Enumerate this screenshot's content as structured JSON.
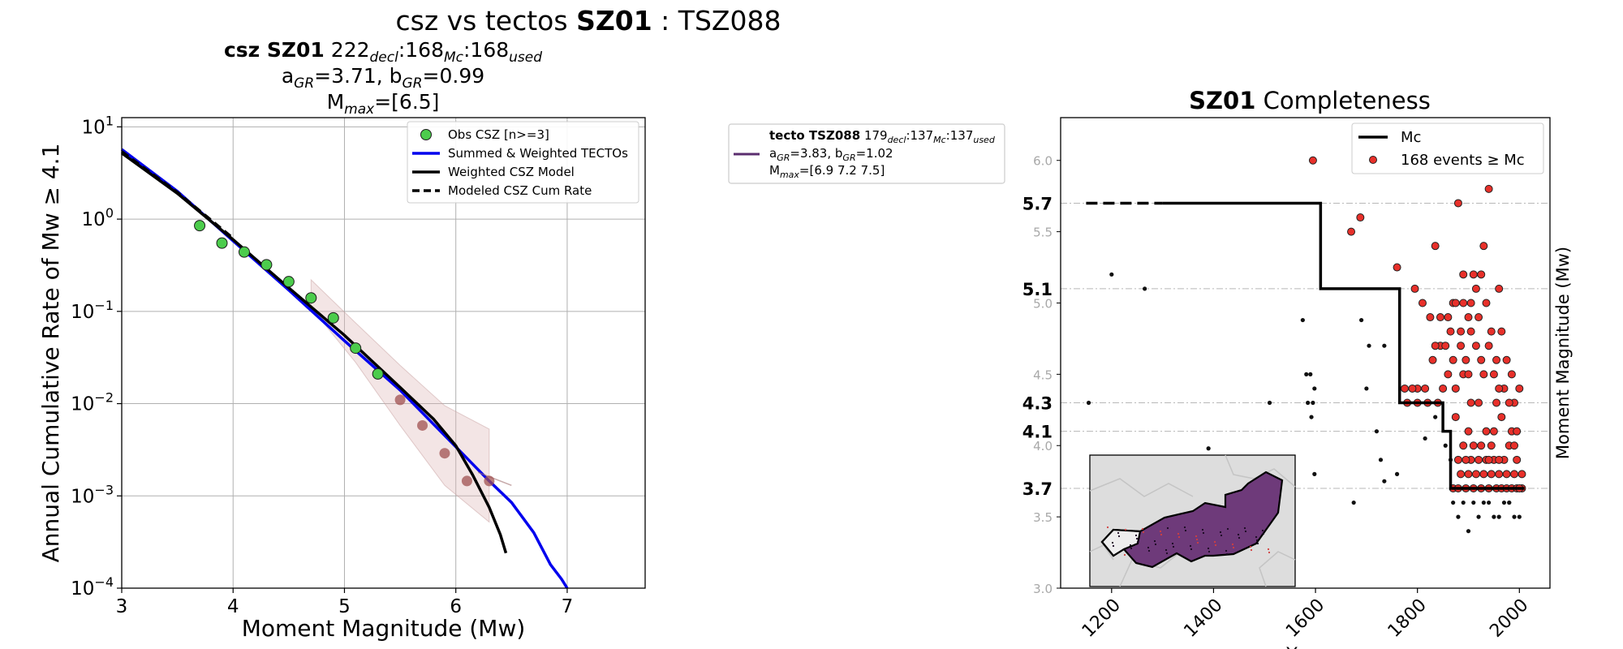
{
  "suptitle": {
    "pre": "csz vs tectos ",
    "zone": "SZ01",
    "post": " : TSZ088"
  },
  "left_title": {
    "zone_label": "csz SZ01",
    "counts": [
      "222",
      "decl",
      ":168",
      "Mc",
      ":168",
      "used"
    ],
    "a_gr": "3.71",
    "b_gr": "0.99",
    "mmax": "[6.5]"
  },
  "tecto_legend": {
    "name": "tecto TSZ088",
    "counts": [
      "179",
      "decl",
      ":137",
      "Mc",
      ":137",
      "used"
    ],
    "a_gr": "3.83",
    "b_gr": "1.02",
    "mmax": "[6.9 7.2 7.5]",
    "color": "#5a2d6e"
  },
  "chart_data": [
    {
      "type": "line",
      "xlabel": "Moment Magnitude (Mw)",
      "ylabel": "Annual Cumulative Rate of Mw  ≥  4.1",
      "xlim": [
        3,
        7.7
      ],
      "ylim_log10": [
        -4,
        1.1
      ],
      "log_y": true,
      "grid": true,
      "legend_position": "top-right",
      "x_ticks": [
        3,
        4,
        5,
        6,
        7
      ],
      "y_ticks": [
        {
          "base": "10",
          "exp": "1"
        },
        {
          "base": "10",
          "exp": "0"
        },
        {
          "base": "10",
          "exp": "−1"
        },
        {
          "base": "10",
          "exp": "−2"
        },
        {
          "base": "10",
          "exp": "−3"
        },
        {
          "base": "10",
          "exp": "−4"
        }
      ],
      "series": [
        {
          "name": "Obs CSZ [n>=3]",
          "kind": "scatter",
          "color": "#4ccc4c",
          "x": [
            3.7,
            3.9,
            4.1,
            4.3,
            4.5,
            4.7,
            4.9,
            5.1,
            5.3
          ],
          "y": [
            0.85,
            0.55,
            0.44,
            0.32,
            0.21,
            0.14,
            0.085,
            0.04,
            0.021
          ]
        },
        {
          "name": "",
          "kind": "scatter",
          "color": "#a05050",
          "x": [
            5.5,
            5.7,
            5.9,
            6.1,
            6.3
          ],
          "y": [
            0.011,
            0.0058,
            0.0029,
            0.00145,
            0.00145
          ]
        },
        {
          "name": "Summed & Weighted TECTOs",
          "kind": "line",
          "color": "#0000ee",
          "x": [
            3.0,
            3.5,
            4.0,
            4.5,
            5.0,
            5.5,
            6.0,
            6.3,
            6.5,
            6.7,
            6.85,
            6.95,
            7.0
          ],
          "y": [
            5.7,
            2.0,
            0.58,
            0.17,
            0.048,
            0.014,
            0.0034,
            0.00145,
            0.00085,
            0.0004,
            0.00018,
            0.000125,
            0.0001
          ]
        },
        {
          "name": "Weighted CSZ Model",
          "kind": "line",
          "color": "#000000",
          "x": [
            3.0,
            3.5,
            4.0,
            4.5,
            5.0,
            5.5,
            5.8,
            6.0,
            6.15,
            6.3,
            6.4,
            6.45
          ],
          "y": [
            5.2,
            1.9,
            0.6,
            0.18,
            0.055,
            0.015,
            0.0068,
            0.0035,
            0.0017,
            0.00075,
            0.00038,
            0.00024
          ]
        },
        {
          "name": "Modeled CSZ Cum Rate",
          "kind": "dashed",
          "color": "#000000",
          "x": [
            3.0,
            3.5,
            4.0
          ],
          "y": [
            5.4,
            1.95,
            0.62
          ]
        }
      ],
      "band": {
        "color": "#dcb4b4",
        "x": [
          4.7,
          5.1,
          5.5,
          5.9,
          6.3
        ],
        "upper": [
          0.22,
          0.075,
          0.026,
          0.0095,
          0.0053
        ],
        "lower": [
          0.11,
          0.028,
          0.0058,
          0.0013,
          0.00052
        ]
      },
      "rate_tail": {
        "x": [
          6.2,
          6.5
        ],
        "y": [
          0.0018,
          0.0013
        ]
      }
    },
    {
      "type": "scatter",
      "title_bold": "SZ01",
      "title_rest": " Completeness",
      "xlabel": "Year",
      "ylabel": "Moment Magnitude (Mw)",
      "xlim": [
        1100,
        2060
      ],
      "ylim": [
        3.0,
        6.3
      ],
      "x_ticks": [
        1200,
        1400,
        1600,
        1800,
        2000
      ],
      "y_ticks": [
        "3.0",
        "3.5",
        "4.0",
        "4.5",
        "5.0",
        "5.5",
        "6.0"
      ],
      "mc_levels": [
        "3.7",
        "4.1",
        "4.3",
        "5.1",
        "5.7"
      ],
      "legend_position": "top-right",
      "legend": [
        {
          "label": "Mc",
          "color": "#000000",
          "kind": "line"
        },
        {
          "label": "168 events  ≥  Mc",
          "color": "#e8302a",
          "kind": "marker"
        }
      ],
      "mc_step": {
        "dashed": [
          [
            1150,
            5.7
          ],
          [
            1300,
            5.7
          ]
        ],
        "solid": [
          [
            1300,
            5.7
          ],
          [
            1610,
            5.7
          ],
          [
            1610,
            5.1
          ],
          [
            1765,
            5.1
          ],
          [
            1765,
            4.3
          ],
          [
            1850,
            4.3
          ],
          [
            1850,
            4.1
          ],
          [
            1865,
            4.1
          ],
          [
            1865,
            3.7
          ],
          [
            2010,
            3.7
          ]
        ]
      },
      "events_above": [
        [
          1595,
          6.0
        ],
        [
          1670,
          5.5
        ],
        [
          1688,
          5.6
        ],
        [
          1760,
          5.25
        ],
        [
          1795,
          5.1
        ],
        [
          1810,
          5.0
        ],
        [
          1825,
          4.9
        ],
        [
          1835,
          5.4
        ],
        [
          1880,
          5.7
        ],
        [
          1940,
          5.8
        ],
        [
          1960,
          5.1
        ],
        [
          1930,
          5.4
        ],
        [
          1890,
          5.2
        ],
        [
          1910,
          5.2
        ],
        [
          1925,
          5.2
        ],
        [
          1775,
          4.4
        ],
        [
          1780,
          4.3
        ],
        [
          1800,
          4.3
        ],
        [
          1815,
          4.4
        ],
        [
          1830,
          4.6
        ],
        [
          1845,
          4.7
        ],
        [
          1860,
          4.9
        ],
        [
          1870,
          5.0
        ],
        [
          1885,
          4.8
        ],
        [
          1895,
          4.6
        ],
        [
          1900,
          4.9
        ],
        [
          1915,
          4.7
        ],
        [
          1930,
          4.5
        ],
        [
          1945,
          4.8
        ],
        [
          1955,
          4.6
        ],
        [
          1970,
          4.4
        ],
        [
          1985,
          4.5
        ],
        [
          1990,
          4.3
        ],
        [
          2000,
          4.4
        ],
        [
          1860,
          4.5
        ],
        [
          1875,
          4.2
        ],
        [
          1890,
          4.0
        ],
        [
          1900,
          4.1
        ],
        [
          1905,
          3.9
        ],
        [
          1920,
          4.3
        ],
        [
          1935,
          4.1
        ],
        [
          1945,
          4.0
        ],
        [
          1950,
          3.9
        ],
        [
          1965,
          4.2
        ],
        [
          1975,
          3.8
        ],
        [
          1980,
          4.0
        ],
        [
          1995,
          3.9
        ],
        [
          2005,
          3.8
        ],
        [
          1870,
          3.7
        ],
        [
          1880,
          3.7
        ],
        [
          1895,
          3.7
        ],
        [
          1910,
          3.7
        ],
        [
          1925,
          3.7
        ],
        [
          1940,
          3.7
        ],
        [
          1955,
          3.7
        ],
        [
          1965,
          3.7
        ],
        [
          1975,
          3.7
        ],
        [
          1985,
          3.7
        ],
        [
          1995,
          3.7
        ],
        [
          2005,
          3.7
        ],
        [
          1885,
          3.8
        ],
        [
          1900,
          3.8
        ],
        [
          1915,
          3.8
        ],
        [
          1930,
          3.8
        ],
        [
          1945,
          3.8
        ],
        [
          1960,
          3.8
        ],
        [
          1990,
          3.8
        ],
        [
          1880,
          3.9
        ],
        [
          1895,
          3.9
        ],
        [
          1920,
          3.9
        ],
        [
          1935,
          3.9
        ],
        [
          1970,
          3.9
        ],
        [
          1985,
          4.1
        ],
        [
          1875,
          4.4
        ],
        [
          1890,
          4.5
        ],
        [
          1905,
          4.3
        ],
        [
          1925,
          4.6
        ],
        [
          1940,
          4.7
        ],
        [
          1960,
          4.4
        ],
        [
          1975,
          4.6
        ],
        [
          1870,
          4.6
        ],
        [
          1885,
          4.7
        ],
        [
          1905,
          4.8
        ],
        [
          1920,
          4.9
        ],
        [
          1935,
          5.0
        ],
        [
          1950,
          4.5
        ],
        [
          1965,
          4.8
        ],
        [
          1980,
          4.3
        ],
        [
          1995,
          4.1
        ],
        [
          1855,
          4.7
        ],
        [
          1865,
          4.8
        ],
        [
          1875,
          5.0
        ],
        [
          1890,
          5.0
        ],
        [
          1905,
          5.0
        ],
        [
          1915,
          5.1
        ],
        [
          1850,
          4.4
        ],
        [
          1840,
          4.3
        ],
        [
          1800,
          4.4
        ],
        [
          1790,
          4.4
        ],
        [
          1820,
          4.3
        ],
        [
          1835,
          4.7
        ],
        [
          1845,
          4.9
        ],
        [
          1900,
          4.5
        ],
        [
          1950,
          4.1
        ],
        [
          1960,
          3.9
        ],
        [
          1940,
          3.9
        ],
        [
          1910,
          4.0
        ],
        [
          1925,
          4.0
        ],
        [
          1955,
          4.3
        ],
        [
          2000,
          3.7
        ],
        [
          1990,
          4.0
        ]
      ],
      "events_below": [
        [
          1200,
          5.2
        ],
        [
          1265,
          5.1
        ],
        [
          1155,
          4.3
        ],
        [
          1390,
          3.98
        ],
        [
          1510,
          4.3
        ],
        [
          1575,
          4.88
        ],
        [
          1582,
          4.5
        ],
        [
          1590,
          4.5
        ],
        [
          1585,
          4.3
        ],
        [
          1592,
          4.2
        ],
        [
          1598,
          4.4
        ],
        [
          1598,
          3.8
        ],
        [
          1595,
          4.3
        ],
        [
          1690,
          4.88
        ],
        [
          1705,
          4.7
        ],
        [
          1735,
          4.7
        ],
        [
          1700,
          4.4
        ],
        [
          1720,
          4.1
        ],
        [
          1728,
          3.9
        ],
        [
          1735,
          3.75
        ],
        [
          1675,
          3.6
        ],
        [
          1760,
          3.8
        ],
        [
          1880,
          3.5
        ],
        [
          1900,
          3.4
        ],
        [
          1920,
          3.5
        ],
        [
          1940,
          3.6
        ],
        [
          1960,
          3.5
        ],
        [
          1980,
          3.6
        ],
        [
          2000,
          3.5
        ],
        [
          1890,
          3.6
        ],
        [
          1870,
          3.6
        ],
        [
          1910,
          3.6
        ],
        [
          1930,
          3.6
        ],
        [
          1950,
          3.5
        ],
        [
          1970,
          3.6
        ],
        [
          1990,
          3.5
        ],
        [
          1815,
          4.05
        ],
        [
          1835,
          4.2
        ],
        [
          1855,
          4.0
        ],
        [
          1865,
          3.9
        ],
        [
          1980,
          3.6
        ]
      ],
      "inset": {
        "land_color": "#dddddd",
        "border_color": "#c4c4c4",
        "polygon_color": "#6e3a7a"
      }
    }
  ]
}
